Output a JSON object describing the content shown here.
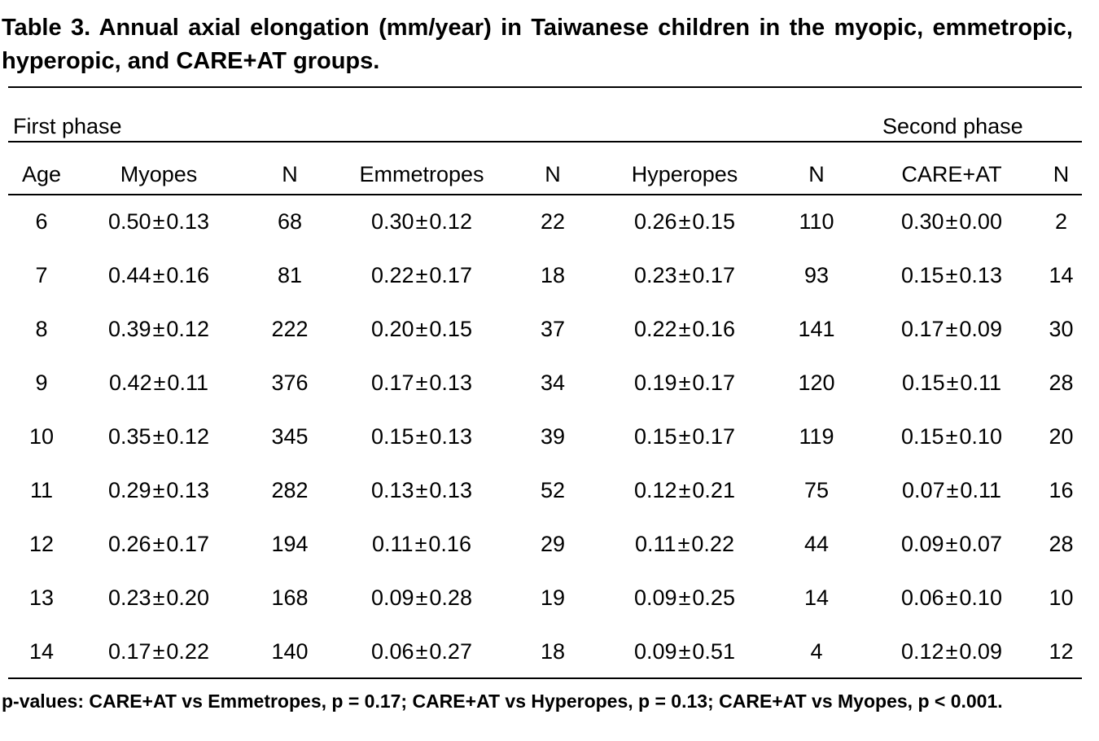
{
  "title": "Table 3. Annual axial elongation (mm/year) in Taiwanese children in the myopic, emmetropic, hyperopic, and CARE+AT groups.",
  "phases": {
    "first": "First phase",
    "second": "Second phase"
  },
  "columns": [
    "Age",
    "Myopes",
    "N",
    "Emmetropes",
    "N",
    "Hyperopes",
    "N",
    "CARE+AT",
    "N"
  ],
  "pm_symbol": "±",
  "rows": [
    {
      "age": "6",
      "myopes": [
        "0.50",
        "0.13"
      ],
      "n1": "68",
      "emmetropes": [
        "0.30",
        "0.12"
      ],
      "n2": "22",
      "hyperopes": [
        "0.26",
        "0.15"
      ],
      "n3": "110",
      "care_at": [
        "0.30",
        "0.00"
      ],
      "n4": "2"
    },
    {
      "age": "7",
      "myopes": [
        "0.44",
        "0.16"
      ],
      "n1": "81",
      "emmetropes": [
        "0.22",
        "0.17"
      ],
      "n2": "18",
      "hyperopes": [
        "0.23",
        "0.17"
      ],
      "n3": "93",
      "care_at": [
        "0.15",
        "0.13"
      ],
      "n4": "14"
    },
    {
      "age": "8",
      "myopes": [
        "0.39",
        "0.12"
      ],
      "n1": "222",
      "emmetropes": [
        "0.20",
        "0.15"
      ],
      "n2": "37",
      "hyperopes": [
        "0.22",
        "0.16"
      ],
      "n3": "141",
      "care_at": [
        "0.17",
        "0.09"
      ],
      "n4": "30"
    },
    {
      "age": "9",
      "myopes": [
        "0.42",
        "0.11"
      ],
      "n1": "376",
      "emmetropes": [
        "0.17",
        "0.13"
      ],
      "n2": "34",
      "hyperopes": [
        "0.19",
        "0.17"
      ],
      "n3": "120",
      "care_at": [
        "0.15",
        "0.11"
      ],
      "n4": "28"
    },
    {
      "age": "10",
      "myopes": [
        "0.35",
        "0.12"
      ],
      "n1": "345",
      "emmetropes": [
        "0.15",
        "0.13"
      ],
      "n2": "39",
      "hyperopes": [
        "0.15",
        "0.17"
      ],
      "n3": "119",
      "care_at": [
        "0.15",
        "0.10"
      ],
      "n4": "20"
    },
    {
      "age": "11",
      "myopes": [
        "0.29",
        "0.13"
      ],
      "n1": "282",
      "emmetropes": [
        "0.13",
        "0.13"
      ],
      "n2": "52",
      "hyperopes": [
        "0.12",
        "0.21"
      ],
      "n3": "75",
      "care_at": [
        "0.07",
        "0.11"
      ],
      "n4": "16"
    },
    {
      "age": "12",
      "myopes": [
        "0.26",
        "0.17"
      ],
      "n1": "194",
      "emmetropes": [
        "0.11",
        "0.16"
      ],
      "n2": "29",
      "hyperopes": [
        "0.11",
        "0.22"
      ],
      "n3": "44",
      "care_at": [
        "0.09",
        "0.07"
      ],
      "n4": "28"
    },
    {
      "age": "13",
      "myopes": [
        "0.23",
        "0.20"
      ],
      "n1": "168",
      "emmetropes": [
        "0.09",
        "0.28"
      ],
      "n2": "19",
      "hyperopes": [
        "0.09",
        "0.25"
      ],
      "n3": "14",
      "care_at": [
        "0.06",
        "0.10"
      ],
      "n4": "10"
    },
    {
      "age": "14",
      "myopes": [
        "0.17",
        "0.22"
      ],
      "n1": "140",
      "emmetropes": [
        "0.06",
        "0.27"
      ],
      "n2": "18",
      "hyperopes": [
        "0.09",
        "0.51"
      ],
      "n3": "4",
      "care_at": [
        "0.12",
        "0.09"
      ],
      "n4": "12"
    }
  ],
  "footnote": "p-values: CARE+AT vs Emmetropes, p = 0.17; CARE+AT vs Hyperopes, p = 0.13; CARE+AT vs Myopes, p < 0.001."
}
